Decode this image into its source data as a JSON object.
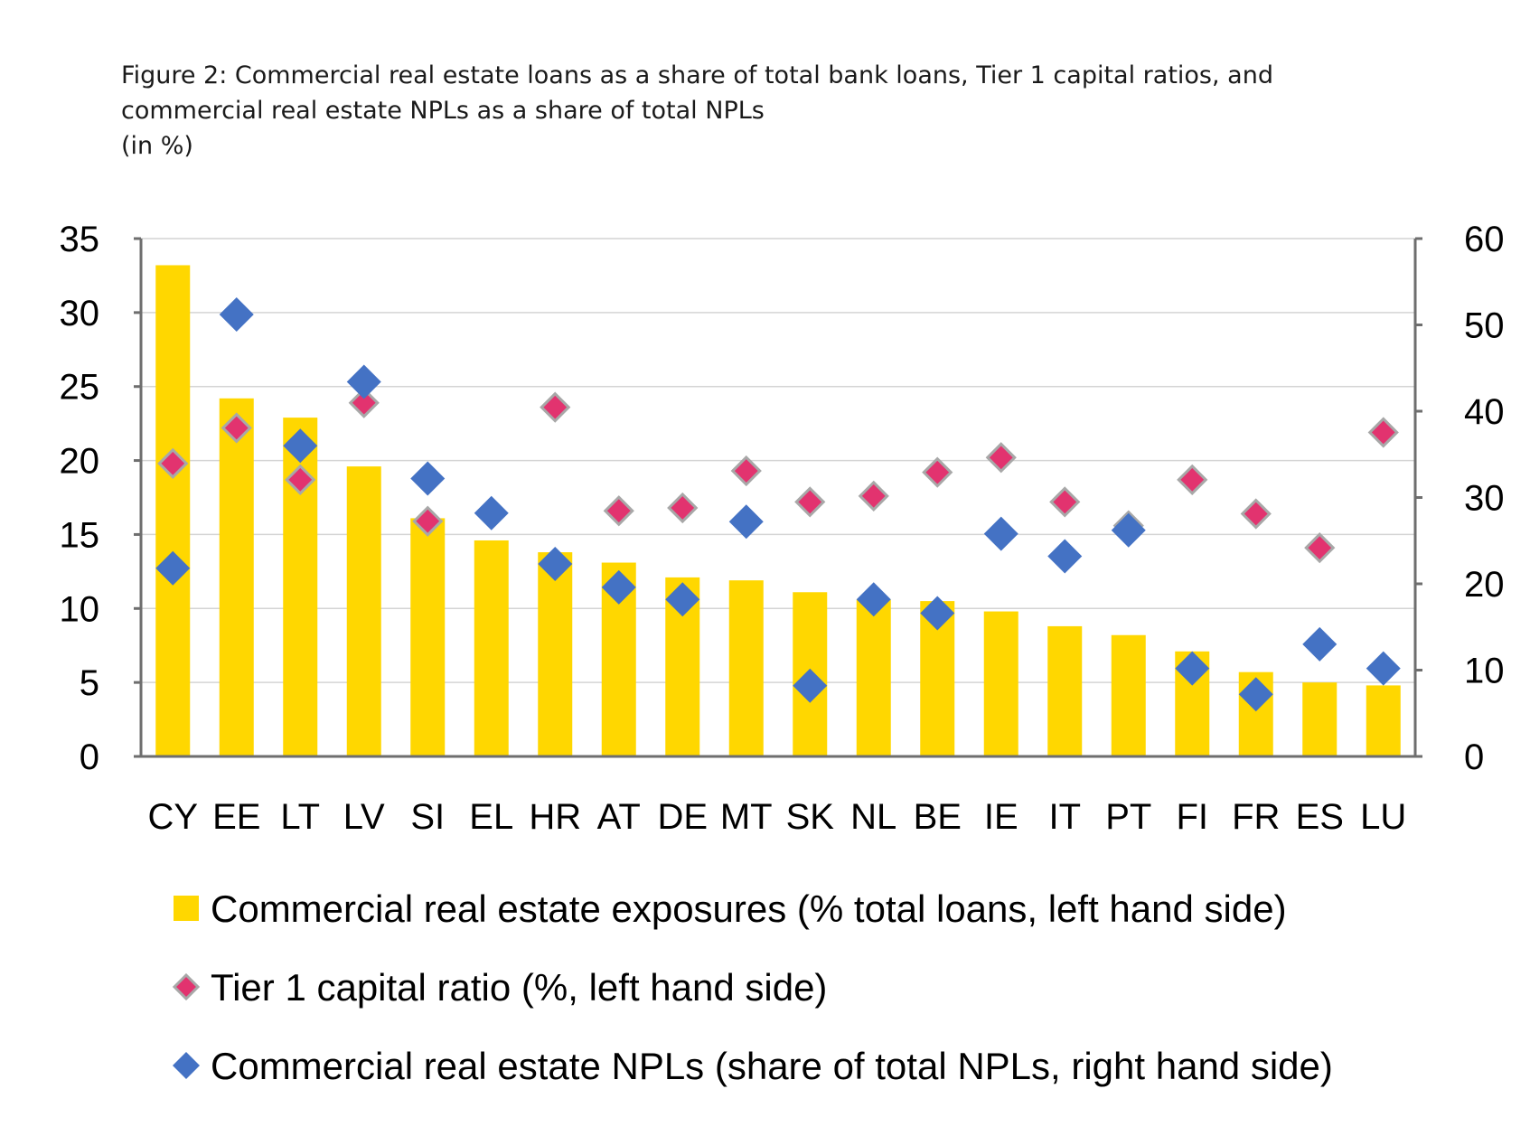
{
  "figure": {
    "title_line1": "Figure 2: Commercial real estate loans as a share of total bank loans, Tier 1 capital ratios, and",
    "title_line2": "commercial real estate NPLs as a share of total NPLs",
    "title_line3": "(in %)"
  },
  "chart_data": {
    "type": "bar",
    "title": "Figure 2: Commercial real estate loans as a share of total bank loans, Tier 1 capital ratios, and commercial real estate NPLs as a share of total NPLs",
    "subtitle": "(in %)",
    "categories": [
      "CY",
      "EE",
      "LT",
      "LV",
      "SI",
      "EL",
      "HR",
      "AT",
      "DE",
      "MT",
      "SK",
      "NL",
      "BE",
      "IE",
      "IT",
      "PT",
      "FI",
      "FR",
      "ES",
      "LU"
    ],
    "y_left": {
      "min": 0,
      "max": 35,
      "ticks": [
        0,
        5,
        10,
        15,
        20,
        25,
        30,
        35
      ]
    },
    "y_right": {
      "min": 0,
      "max": 60,
      "ticks": [
        0,
        10,
        20,
        30,
        40,
        50,
        60
      ]
    },
    "grid": true,
    "legend_position": "bottom",
    "series": [
      {
        "name": "Commercial real estate exposures (% total loans, left hand side)",
        "type": "bar",
        "axis": "left",
        "color": "#FFD700",
        "values": [
          33.2,
          24.2,
          22.9,
          19.6,
          16.1,
          14.6,
          13.8,
          13.1,
          12.1,
          11.9,
          11.1,
          10.6,
          10.5,
          9.8,
          8.8,
          8.2,
          7.1,
          5.7,
          5.0,
          4.8
        ]
      },
      {
        "name": "Tier 1 capital ratio (%, left hand side)",
        "type": "scatter",
        "axis": "left",
        "color": "#E2336F",
        "values": [
          19.8,
          22.2,
          18.7,
          23.9,
          15.9,
          null,
          23.6,
          16.6,
          16.8,
          19.3,
          17.2,
          17.6,
          19.2,
          20.2,
          17.2,
          15.6,
          18.7,
          16.4,
          14.1,
          21.9
        ]
      },
      {
        "name": "Commercial real estate NPLs (share of total NPLs, right hand side)",
        "type": "scatter",
        "axis": "right",
        "color": "#4472C4",
        "values": [
          21.8,
          51.2,
          36.0,
          43.4,
          32.2,
          28.2,
          22.3,
          19.6,
          18.2,
          27.2,
          8.2,
          18.2,
          16.6,
          25.8,
          23.2,
          26.2,
          10.2,
          7.2,
          13.0,
          10.2
        ]
      }
    ]
  }
}
